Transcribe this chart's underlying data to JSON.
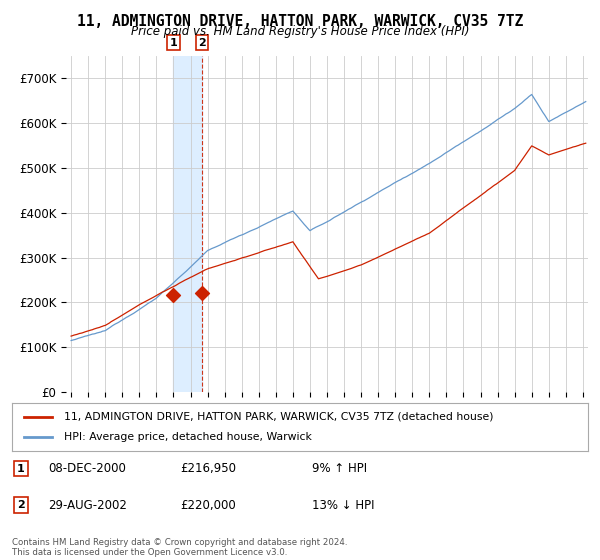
{
  "title": "11, ADMINGTON DRIVE, HATTON PARK, WARWICK, CV35 7TZ",
  "subtitle": "Price paid vs. HM Land Registry's House Price Index (HPI)",
  "legend_label_red": "11, ADMINGTON DRIVE, HATTON PARK, WARWICK, CV35 7TZ (detached house)",
  "legend_label_blue": "HPI: Average price, detached house, Warwick",
  "footer": "Contains HM Land Registry data © Crown copyright and database right 2024.\nThis data is licensed under the Open Government Licence v3.0.",
  "transactions": [
    {
      "num": 1,
      "date": "08-DEC-2000",
      "price": "£216,950",
      "hpi": "9% ↑ HPI",
      "year": 2001.0
    },
    {
      "num": 2,
      "date": "29-AUG-2002",
      "price": "£220,000",
      "hpi": "13% ↓ HPI",
      "year": 2002.67
    }
  ],
  "red_color": "#cc2200",
  "blue_color": "#6699cc",
  "vline_color": "#cc2200",
  "dot_color": "#cc2200",
  "band_color": "#ddeeff",
  "ylim": [
    0,
    750000
  ],
  "yticks": [
    0,
    100000,
    200000,
    300000,
    400000,
    500000,
    600000,
    700000
  ],
  "ytick_labels": [
    "£0",
    "£100K",
    "£200K",
    "£300K",
    "£400K",
    "£500K",
    "£600K",
    "£700K"
  ],
  "xlim_start": 1994.7,
  "xlim_end": 2025.3,
  "t1_price": 216950,
  "t2_price": 220000
}
